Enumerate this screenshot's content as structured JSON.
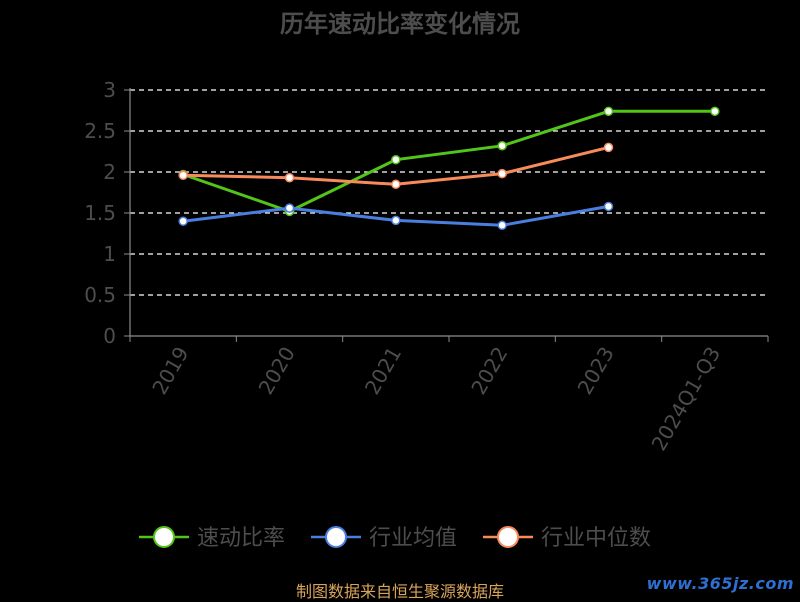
{
  "chart_data": {
    "type": "line",
    "title": "历年速动比率变化情况",
    "categories": [
      "2019",
      "2020",
      "2021",
      "2022",
      "2023",
      "2024Q1-Q3"
    ],
    "ylim": [
      0,
      3
    ],
    "yticks": [
      "0",
      "0.5",
      "1",
      "1.5",
      "2",
      "2.5",
      "3"
    ],
    "ytick_values": [
      0,
      0.5,
      1,
      1.5,
      2,
      2.5,
      3
    ],
    "grid": true,
    "legend_position": "bottom",
    "series": [
      {
        "name": "速动比率",
        "color": "#52c41a",
        "values": [
          1.97,
          1.52,
          2.15,
          2.32,
          2.74,
          2.74
        ]
      },
      {
        "name": "行业均值",
        "color": "#4a7fe0",
        "values": [
          1.4,
          1.56,
          1.41,
          1.35,
          1.58,
          null
        ]
      },
      {
        "name": "行业中位数",
        "color": "#f78b5c",
        "values": [
          1.96,
          1.93,
          1.85,
          1.98,
          2.3,
          null
        ]
      }
    ]
  },
  "footer": {
    "source": "制图数据来自恒生聚源数据库",
    "watermark": "www.365jz.com"
  }
}
